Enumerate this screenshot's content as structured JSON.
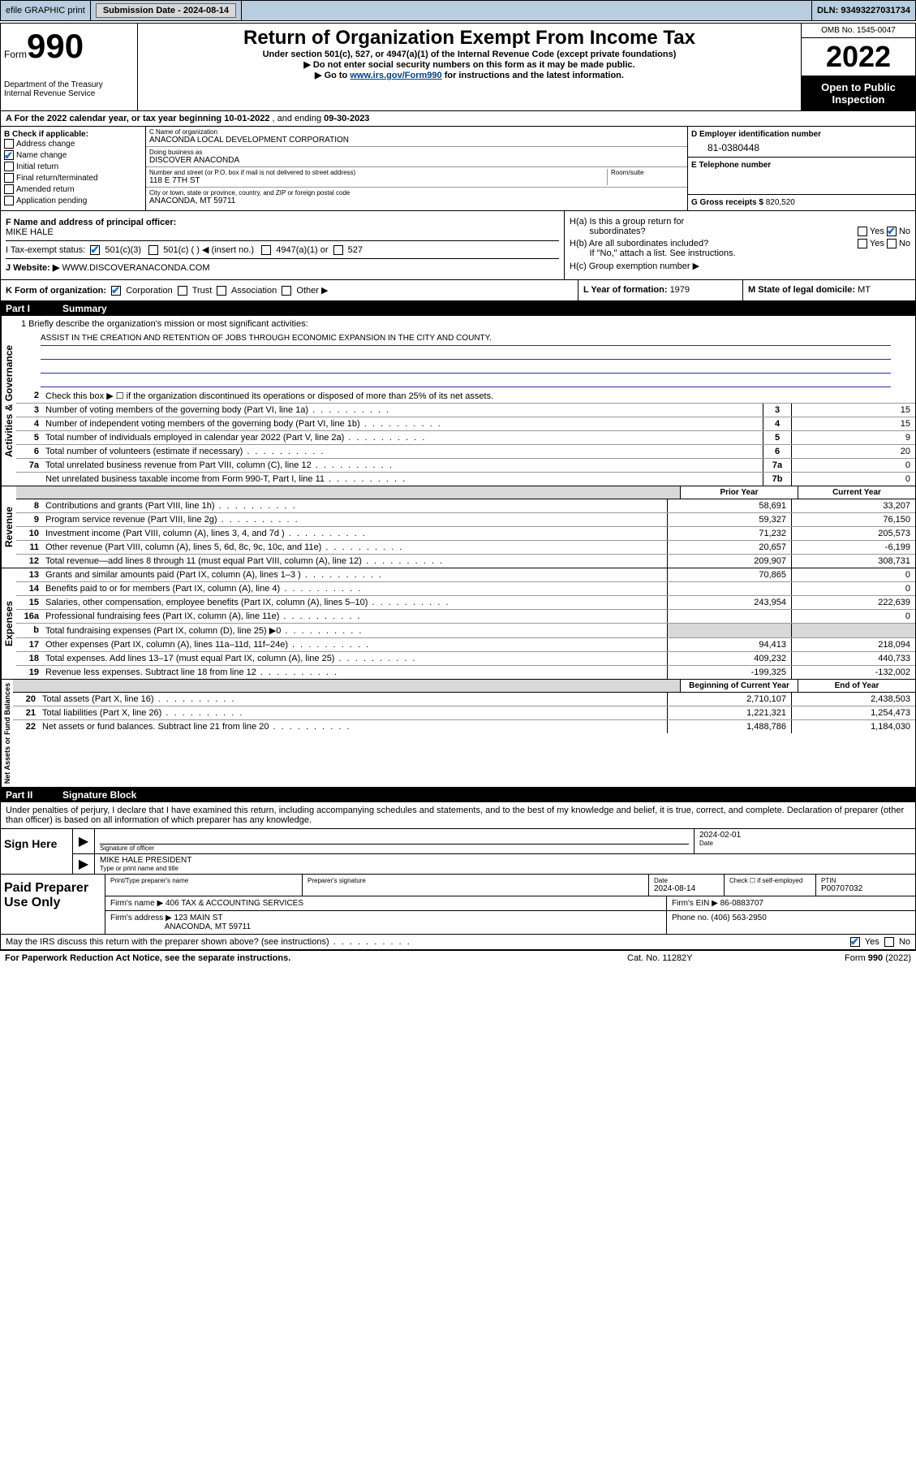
{
  "topbar": {
    "efile": "efile GRAPHIC print",
    "sub_lbl": "Submission Date - ",
    "sub_date": "2024-08-14",
    "dln_lbl": "DLN: ",
    "dln": "93493227031734"
  },
  "hdr": {
    "form_word": "Form",
    "form_no": "990",
    "dept": "Department of the Treasury",
    "irs": "Internal Revenue Service",
    "title": "Return of Organization Exempt From Income Tax",
    "sub": "Under section 501(c), 527, or 4947(a)(1) of the Internal Revenue Code (except private foundations)",
    "arrow1": "▶ Do not enter social security numbers on this form as it may be made public.",
    "arrow2_pre": "▶ Go to ",
    "arrow2_link": "www.irs.gov/Form990",
    "arrow2_post": " for instructions and the latest information.",
    "omb": "OMB No. 1545-0047",
    "year": "2022",
    "otp1": "Open to Public",
    "otp2": "Inspection"
  },
  "lineA": {
    "pre": "A For the 2022 calendar year, or tax year beginning ",
    "begin": "10-01-2022",
    "mid": " , and ending ",
    "end": "09-30-2023"
  },
  "colB": {
    "hdr": "B Check if applicable:",
    "items": [
      {
        "label": "Address change",
        "checked": false
      },
      {
        "label": "Name change",
        "checked": true
      },
      {
        "label": "Initial return",
        "checked": false
      },
      {
        "label": "Final return/terminated",
        "checked": false
      },
      {
        "label": "Amended return",
        "checked": false
      },
      {
        "label": "Application pending",
        "checked": false
      }
    ]
  },
  "colC": {
    "name_lbl": "C Name of organization",
    "name": "ANACONDA LOCAL DEVELOPMENT CORPORATION",
    "dba_lbl": "Doing business as",
    "dba": "DISCOVER ANACONDA",
    "addr_lbl": "Number and street (or P.O. box if mail is not delivered to street address)",
    "room_lbl": "Room/suite",
    "addr": "118 E 7TH ST",
    "city_lbl": "City or town, state or province, country, and ZIP or foreign postal code",
    "city": "ANACONDA, MT  59711"
  },
  "colD": {
    "ein_lbl": "D Employer identification number",
    "ein": "81-0380448",
    "phone_lbl": "E Telephone number",
    "phone": "",
    "gross_lbl": "G Gross receipts $ ",
    "gross": "820,520"
  },
  "secF": {
    "f_lbl": "F Name and address of principal officer:",
    "f_val": "MIKE HALE",
    "i_lbl": "I    Tax-exempt status:",
    "i_501c3": "501(c)(3)",
    "i_501c": "501(c) (  ) ◀ (insert no.)",
    "i_4947": "4947(a)(1) or",
    "i_527": "527",
    "j_lbl": "J   Website: ▶",
    "j_val": "WWW.DISCOVERANACONDA.COM"
  },
  "secH": {
    "ha": "H(a)  Is this a group return for",
    "ha2": "subordinates?",
    "hb": "H(b)  Are all subordinates included?",
    "hb_note": "If \"No,\" attach a list. See instructions.",
    "hc": "H(c)  Group exemption number ▶",
    "yes": "Yes",
    "no": "No"
  },
  "klm": {
    "k_lbl": "K Form of organization:",
    "k_corp": "Corporation",
    "k_trust": "Trust",
    "k_assoc": "Association",
    "k_other": "Other ▶",
    "l_lbl": "L Year of formation: ",
    "l_val": "1979",
    "m_lbl": "M State of legal domicile: ",
    "m_val": "MT"
  },
  "part1": {
    "pn": "Part I",
    "t": "Summary"
  },
  "mission": {
    "q": "1   Briefly describe the organization's mission or most significant activities:",
    "a": "ASSIST IN THE CREATION AND RETENTION OF JOBS THROUGH ECONOMIC EXPANSION IN THE CITY AND COUNTY."
  },
  "gov": {
    "label": "Activities & Governance",
    "r2": "Check this box ▶ ☐  if the organization discontinued its operations or disposed of more than 25% of its net assets.",
    "rows": [
      {
        "n": "3",
        "t": "Number of voting members of the governing body (Part VI, line 1a)",
        "box": "3",
        "v": "15"
      },
      {
        "n": "4",
        "t": "Number of independent voting members of the governing body (Part VI, line 1b)",
        "box": "4",
        "v": "15"
      },
      {
        "n": "5",
        "t": "Total number of individuals employed in calendar year 2022 (Part V, line 2a)",
        "box": "5",
        "v": "9"
      },
      {
        "n": "6",
        "t": "Total number of volunteers (estimate if necessary)",
        "box": "6",
        "v": "20"
      },
      {
        "n": "7a",
        "t": "Total unrelated business revenue from Part VIII, column (C), line 12",
        "box": "7a",
        "v": "0"
      },
      {
        "n": "",
        "t": "Net unrelated business taxable income from Form 990-T, Part I, line 11",
        "box": "7b",
        "v": "0"
      }
    ]
  },
  "colhdr": {
    "prior": "Prior Year",
    "current": "Current Year",
    "boy": "Beginning of Current Year",
    "eoy": "End of Year"
  },
  "rev": {
    "label": "Revenue",
    "rows": [
      {
        "n": "8",
        "t": "Contributions and grants (Part VIII, line 1h)",
        "p": "58,691",
        "c": "33,207"
      },
      {
        "n": "9",
        "t": "Program service revenue (Part VIII, line 2g)",
        "p": "59,327",
        "c": "76,150"
      },
      {
        "n": "10",
        "t": "Investment income (Part VIII, column (A), lines 3, 4, and 7d )",
        "p": "71,232",
        "c": "205,573"
      },
      {
        "n": "11",
        "t": "Other revenue (Part VIII, column (A), lines 5, 6d, 8c, 9c, 10c, and 11e)",
        "p": "20,657",
        "c": "-6,199"
      },
      {
        "n": "12",
        "t": "Total revenue—add lines 8 through 11 (must equal Part VIII, column (A), line 12)",
        "p": "209,907",
        "c": "308,731"
      }
    ]
  },
  "exp": {
    "label": "Expenses",
    "rows": [
      {
        "n": "13",
        "t": "Grants and similar amounts paid (Part IX, column (A), lines 1–3 )",
        "p": "70,865",
        "c": "0"
      },
      {
        "n": "14",
        "t": "Benefits paid to or for members (Part IX, column (A), line 4)",
        "p": "",
        "c": "0"
      },
      {
        "n": "15",
        "t": "Salaries, other compensation, employee benefits (Part IX, column (A), lines 5–10)",
        "p": "243,954",
        "c": "222,639"
      },
      {
        "n": "16a",
        "t": "Professional fundraising fees (Part IX, column (A), line 11e)",
        "p": "",
        "c": "0"
      },
      {
        "n": "b",
        "t": "Total fundraising expenses (Part IX, column (D), line 25) ▶0",
        "p": "",
        "c": "",
        "shade": true
      },
      {
        "n": "17",
        "t": "Other expenses (Part IX, column (A), lines 11a–11d, 11f–24e)",
        "p": "94,413",
        "c": "218,094"
      },
      {
        "n": "18",
        "t": "Total expenses. Add lines 13–17 (must equal Part IX, column (A), line 25)",
        "p": "409,232",
        "c": "440,733"
      },
      {
        "n": "19",
        "t": "Revenue less expenses. Subtract line 18 from line 12",
        "p": "-199,325",
        "c": "-132,002"
      }
    ]
  },
  "na": {
    "label": "Net Assets or Fund Balances",
    "rows": [
      {
        "n": "20",
        "t": "Total assets (Part X, line 16)",
        "p": "2,710,107",
        "c": "2,438,503"
      },
      {
        "n": "21",
        "t": "Total liabilities (Part X, line 26)",
        "p": "1,221,321",
        "c": "1,254,473"
      },
      {
        "n": "22",
        "t": "Net assets or fund balances. Subtract line 21 from line 20",
        "p": "1,488,786",
        "c": "1,184,030"
      }
    ]
  },
  "part2": {
    "pn": "Part II",
    "t": "Signature Block"
  },
  "sig": {
    "decl": "Under penalties of perjury, I declare that I have examined this return, including accompanying schedules and statements, and to the best of my knowledge and belief, it is true, correct, and complete. Declaration of preparer (other than officer) is based on all information of which preparer has any knowledge.",
    "here": "Sign Here",
    "sig_lbl": "Signature of officer",
    "date_lbl": "Date",
    "date": "2024-02-01",
    "name": "MIKE HALE PRESIDENT",
    "name_lbl": "Type or print name and title"
  },
  "prep": {
    "hdr": "Paid Preparer Use Only",
    "pt_name_lbl": "Print/Type preparer's name",
    "pt_sig_lbl": "Preparer's signature",
    "date_lbl": "Date",
    "date": "2024-08-14",
    "se_lbl": "Check ☐ if self-employed",
    "ptin_lbl": "PTIN",
    "ptin": "P00707032",
    "firm_name_lbl": "Firm's name    ▶ ",
    "firm_name": "406 TAX & ACCOUNTING SERVICES",
    "firm_ein_lbl": "Firm's EIN ▶ ",
    "firm_ein": "86-0883707",
    "firm_addr_lbl": "Firm's address ▶ ",
    "firm_addr1": "123 MAIN ST",
    "firm_addr2": "ANACONDA, MT  59711",
    "phone_lbl": "Phone no. ",
    "phone": "(406) 563-2950"
  },
  "may": {
    "t": "May the IRS discuss this return with the preparer shown above? (see instructions)",
    "yes": "Yes",
    "no": "No"
  },
  "footer": {
    "l": "For Paperwork Reduction Act Notice, see the separate instructions.",
    "m": "Cat. No. 11282Y",
    "r": "Form 990 (2022)"
  }
}
